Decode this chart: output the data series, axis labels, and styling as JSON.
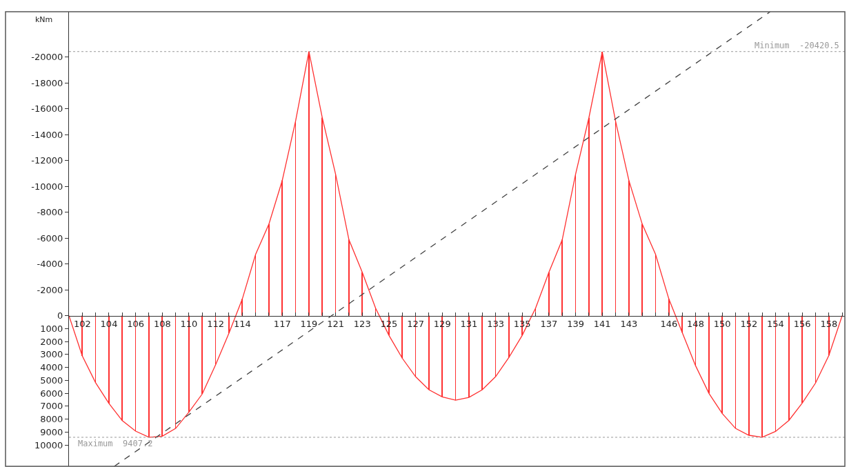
{
  "chart_data": {
    "type": "line",
    "ylabel": "kNm",
    "x": [
      101,
      102,
      103,
      104,
      105,
      106,
      107,
      108,
      109,
      110,
      111,
      112,
      113,
      114,
      115,
      116,
      117,
      118,
      119,
      120,
      121,
      122,
      123,
      124,
      125,
      126,
      127,
      128,
      129,
      130,
      131,
      132,
      133,
      134,
      135,
      136,
      137,
      138,
      139,
      140,
      141,
      142,
      143,
      144,
      145,
      146,
      147,
      148,
      149,
      150,
      151,
      152,
      153,
      154,
      155,
      156,
      157,
      158,
      159
    ],
    "xlim": [
      101,
      159.2
    ],
    "xticks": [
      {
        "value": 101,
        "label": null
      },
      102,
      {
        "value": 103,
        "label": null
      },
      104,
      {
        "value": 105,
        "label": null
      },
      106,
      {
        "value": 107,
        "label": null
      },
      108,
      {
        "value": 109,
        "label": null
      },
      110,
      {
        "value": 111,
        "label": null
      },
      112,
      {
        "value": 113,
        "label": null
      },
      114,
      {
        "value": 115,
        "label": null
      },
      {
        "value": 116,
        "label": null
      },
      117,
      {
        "value": 118,
        "label": null
      },
      119,
      {
        "value": 120,
        "label": null
      },
      121,
      {
        "value": 122,
        "label": null
      },
      123,
      {
        "value": 124,
        "label": null
      },
      125,
      {
        "value": 126,
        "label": null
      },
      127,
      {
        "value": 128,
        "label": null
      },
      129,
      {
        "value": 130,
        "label": null
      },
      131,
      {
        "value": 132,
        "label": null
      },
      133,
      {
        "value": 134,
        "label": null
      },
      135,
      {
        "value": 136,
        "label": null
      },
      137,
      {
        "value": 138,
        "label": null
      },
      139,
      {
        "value": 140,
        "label": null
      },
      141,
      {
        "value": 142,
        "label": null
      },
      143,
      {
        "value": 144,
        "label": null
      },
      {
        "value": 145,
        "label": null
      },
      146,
      {
        "value": 147,
        "label": null
      },
      148,
      {
        "value": 149,
        "label": null
      },
      150,
      {
        "value": 151,
        "label": null
      },
      152,
      {
        "value": 153,
        "label": null
      },
      154,
      {
        "value": 155,
        "label": null
      },
      156,
      {
        "value": 157,
        "label": null
      },
      158,
      {
        "value": 159,
        "label": null
      }
    ],
    "ylim": [
      11650,
      -23500
    ],
    "yticks": [
      -20000,
      -18000,
      -16000,
      -14000,
      -12000,
      -10000,
      -8000,
      -6000,
      -4000,
      -2000,
      0,
      1000,
      2000,
      3000,
      4000,
      5000,
      6000,
      7000,
      8000,
      9000,
      10000
    ],
    "series": [
      {
        "type": "bar",
        "color": "#ff3030",
        "values": [
          0,
          3120,
          5190,
          6790,
          8120,
          8930,
          9407.2,
          9320,
          8720,
          7460,
          6050,
          3800,
          1350,
          -1280,
          -4740,
          -7090,
          -10460,
          -15050,
          -20420.5,
          -15310,
          -10930,
          -5870,
          -3350,
          -580,
          1520,
          3290,
          4720,
          5730,
          6280,
          6540,
          6320,
          5730,
          4720,
          3230,
          1520,
          -580,
          -3350,
          -5870,
          -10930,
          -15300,
          -20400,
          -15040,
          -10450,
          -7080,
          -4740,
          -1280,
          1300,
          3870,
          6000,
          7560,
          8720,
          9250,
          9400,
          8950,
          8100,
          6760,
          5210,
          3080,
          0
        ]
      },
      {
        "color": "#ff3030",
        "marker": "none",
        "line_style": "solid",
        "values": [
          0,
          3120,
          5190,
          6790,
          8120,
          8930,
          9407.2,
          9320,
          8720,
          7460,
          6050,
          3800,
          1350,
          -1280,
          -4740,
          -7090,
          -10460,
          -15050,
          -20420.5,
          -15310,
          -10930,
          -5870,
          -3350,
          -580,
          1520,
          3290,
          4720,
          5730,
          6280,
          6540,
          6320,
          5730,
          4720,
          3230,
          1520,
          -580,
          -3350,
          -5870,
          -10930,
          -15300,
          -20400,
          -15040,
          -10450,
          -7080,
          -4740,
          -1280,
          1300,
          3870,
          6000,
          7560,
          8720,
          9250,
          9400,
          8950,
          8100,
          6760,
          5210,
          3080,
          0
        ]
      },
      {
        "color": "#404040",
        "line_style": "dashed",
        "marker": "none",
        "x": [
          104.4,
          153.6
        ],
        "values": [
          11650,
          -23500
        ]
      }
    ],
    "ref_lines": [
      {
        "axis": "y",
        "value": 9407.2,
        "label": "Maximum  9407.2",
        "color": "#999999",
        "line_style": "dotted"
      },
      {
        "axis": "y",
        "value": -20420.5,
        "label": "Minimum  -20420.5",
        "color": "#999999",
        "line_style": "dotted"
      }
    ]
  }
}
